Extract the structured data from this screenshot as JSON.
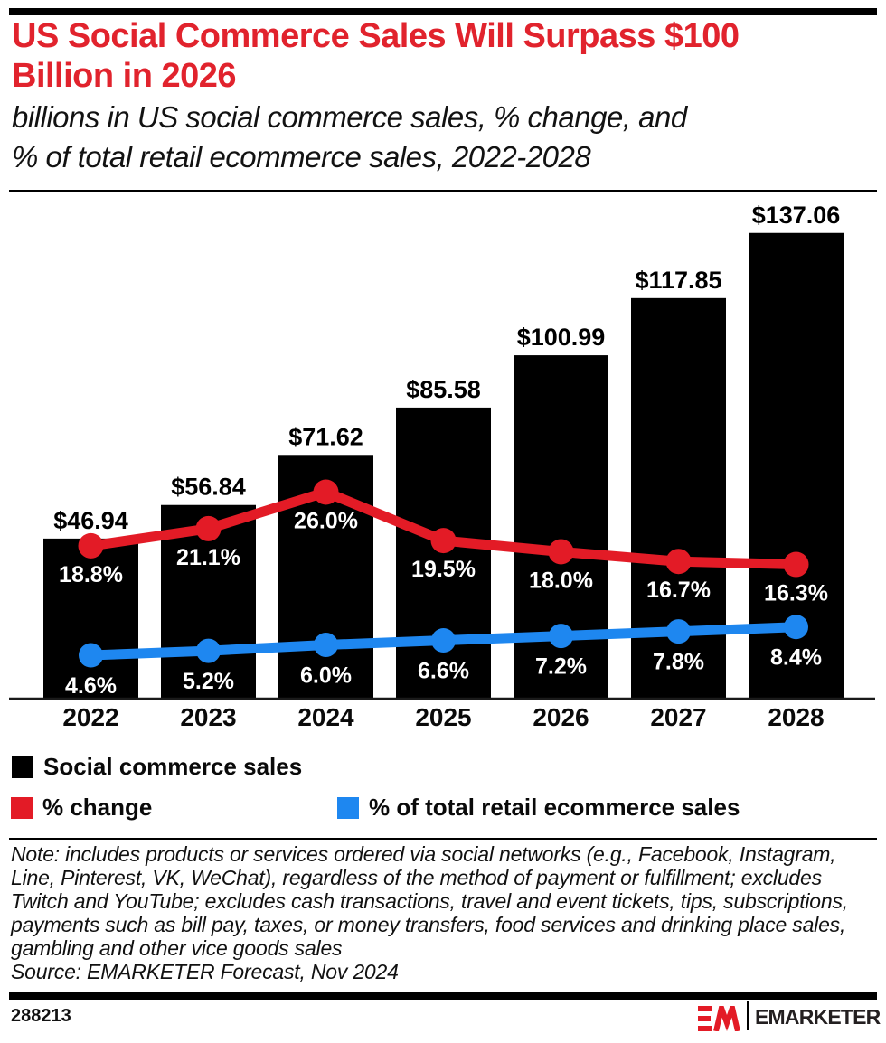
{
  "header": {
    "title_line1": "US Social Commerce Sales Will Surpass $100",
    "title_line2": "Billion in 2026",
    "subtitle_line1": "billions in US social commerce sales, % change, and",
    "subtitle_line2": "% of total retail ecommerce sales, 2022-2028"
  },
  "chart_data": {
    "type": "combo",
    "title": "US Social Commerce Sales Will Surpass $100 Billion in 2026",
    "xlabel": "",
    "ylabel": "",
    "categories": [
      "2022",
      "2023",
      "2024",
      "2025",
      "2026",
      "2027",
      "2028"
    ],
    "series": [
      {
        "name": "Social commerce sales",
        "type": "bar",
        "color": "#000000",
        "unit": "billions USD",
        "value_prefix": "$",
        "values": [
          46.94,
          56.84,
          71.62,
          85.58,
          100.99,
          117.85,
          137.06
        ]
      },
      {
        "name": "% change",
        "type": "line",
        "color": "#e31b26",
        "unit": "percent",
        "value_suffix": "%",
        "values": [
          18.8,
          21.1,
          26.0,
          19.5,
          18.0,
          16.7,
          16.3
        ]
      },
      {
        "name": "% of total retail ecommerce sales",
        "type": "line",
        "color": "#1e87f0",
        "unit": "percent",
        "value_suffix": "%",
        "values": [
          4.6,
          5.2,
          6.0,
          6.6,
          7.2,
          7.8,
          8.4
        ]
      }
    ],
    "grid": false,
    "value_axis_visible": false,
    "legend_position": "bottom"
  },
  "legend": {
    "items": [
      {
        "label": "Social commerce sales",
        "color": "#000000"
      },
      {
        "label": "% change",
        "color": "#e31b26"
      },
      {
        "label": "% of total retail ecommerce sales",
        "color": "#1e87f0"
      }
    ]
  },
  "note": "Note: includes products or services ordered via social networks (e.g., Facebook, Instagram, Line, Pinterest, VK, WeChat), regardless of the method of payment or fulfillment; excludes Twitch and YouTube; excludes cash transactions, travel and event tickets, tips, subscriptions, payments such as bill pay, taxes, or money transfers, food services and drinking place sales, gambling and other vice goods sales",
  "source": "Source: EMARKETER Forecast, Nov 2024",
  "footer": {
    "chart_id": "288213",
    "monogram": "EM",
    "brand": "EMARKETER"
  },
  "colors": {
    "title_red": "#e1232d",
    "line_red": "#e31b26",
    "line_blue": "#1e87f0",
    "bar_black": "#000000",
    "background": "#ffffff"
  }
}
